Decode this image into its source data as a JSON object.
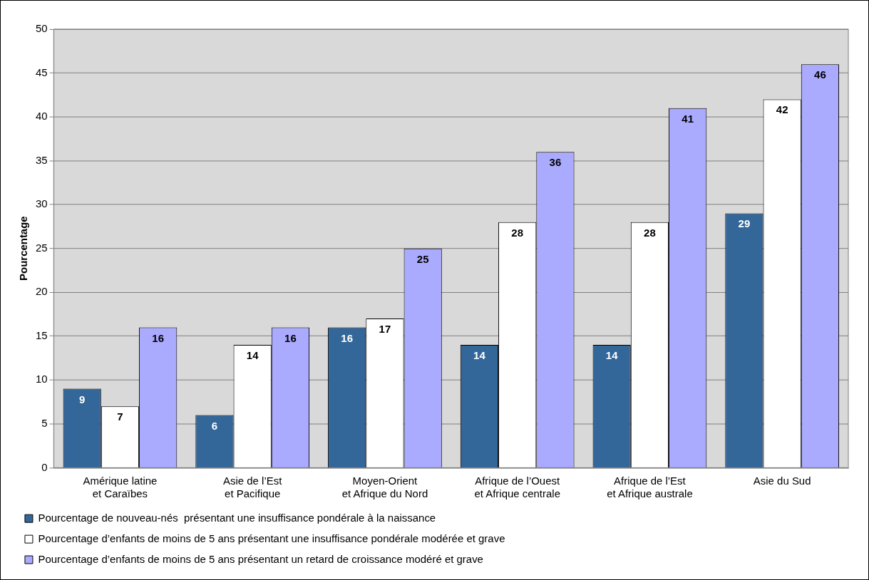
{
  "chart_data": {
    "type": "bar",
    "ylabel": "Pourcentage",
    "categories": [
      "Amérique latine\net Caraïbes",
      "Asie de l’Est\net Pacifique",
      "Moyen-Orient\net Afrique du Nord",
      "Afrique de l’Ouest\net Afrique centrale",
      "Afrique de l’Est\net Afrique australe",
      "Asie du Sud"
    ],
    "series": [
      {
        "name": "Pourcentage de nouveau-nés  présentant une insuffisance pondérale à la naissance",
        "color": "#336699",
        "values": [
          9,
          6,
          16,
          14,
          14,
          29
        ]
      },
      {
        "name": "Pourcentage d’enfants de moins de 5 ans présentant une insuffisance pondérale modérée et grave",
        "color": "#ffffff",
        "values": [
          7,
          14,
          17,
          28,
          28,
          42
        ]
      },
      {
        "name": "Pourcentage d’enfants de moins de 5 ans présentant un retard de croissance modéré et grave",
        "color": "#aaaaff",
        "values": [
          16,
          16,
          25,
          36,
          41,
          46
        ]
      }
    ],
    "ylim": [
      0,
      50
    ],
    "yticks": [
      0,
      5,
      10,
      15,
      20,
      25,
      30,
      35,
      40,
      45,
      50
    ],
    "grid": "y",
    "legend": "bottom",
    "data_labels": true
  }
}
